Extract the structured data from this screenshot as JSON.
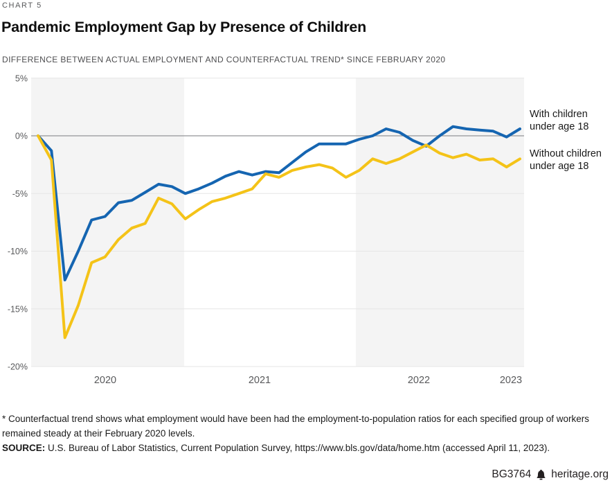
{
  "header": {
    "kicker": "CHART 5",
    "title": "Pandemic Employment Gap by Presence of Children",
    "subtitle": "DIFFERENCE BETWEEN ACTUAL EMPLOYMENT AND COUNTERFACTUAL TREND* SINCE FEBRUARY 2020"
  },
  "chart_data": {
    "type": "line",
    "title": "Pandemic Employment Gap by Presence of Children",
    "xlabel": "",
    "ylabel": "Difference between actual employment and counterfactual trend since February 2020 (%)",
    "ylim": [
      -20,
      5
    ],
    "grid": "horizontal",
    "zero_line": true,
    "legend_position": "right",
    "x_tick_labels": [
      "2020",
      "2021",
      "2022",
      "2023"
    ],
    "y_tick_labels": [
      "5%",
      "0%",
      "-5%",
      "-10%",
      "-15%",
      "-20%"
    ],
    "y_tick_values": [
      5,
      0,
      -5,
      -10,
      -15,
      -20
    ],
    "year_bands": [
      {
        "label": "2020",
        "shaded": true
      },
      {
        "label": "2021",
        "shaded": false
      },
      {
        "label": "2022",
        "shaded": true
      }
    ],
    "categories": [
      "Feb 2020",
      "Mar 2020",
      "Apr 2020",
      "May 2020",
      "Jun 2020",
      "Jul 2020",
      "Aug 2020",
      "Sep 2020",
      "Oct 2020",
      "Nov 2020",
      "Dec 2020",
      "Jan 2021",
      "Feb 2021",
      "Mar 2021",
      "Apr 2021",
      "May 2021",
      "Jun 2021",
      "Jul 2021",
      "Aug 2021",
      "Sep 2021",
      "Oct 2021",
      "Nov 2021",
      "Dec 2021",
      "Jan 2022",
      "Feb 2022",
      "Mar 2022",
      "Apr 2022",
      "May 2022",
      "Jun 2022",
      "Jul 2022",
      "Aug 2022",
      "Sep 2022",
      "Oct 2022",
      "Nov 2022",
      "Dec 2022",
      "Jan 2023",
      "Feb 2023"
    ],
    "series": [
      {
        "name": "With children under age 18",
        "color": "#1565b1",
        "values": [
          0.0,
          -1.3,
          -12.5,
          -10.0,
          -7.3,
          -7.0,
          -5.8,
          -5.6,
          -4.9,
          -4.2,
          -4.4,
          -5.0,
          -4.6,
          -4.1,
          -3.5,
          -3.1,
          -3.4,
          -3.1,
          -3.2,
          -2.3,
          -1.4,
          -0.7,
          -0.7,
          -0.7,
          -0.3,
          0.0,
          0.6,
          0.3,
          -0.4,
          -0.9,
          0.0,
          0.8,
          0.6,
          0.5,
          0.4,
          -0.1,
          0.6
        ]
      },
      {
        "name": "Without children under age 18",
        "color": "#f4c318",
        "values": [
          0.0,
          -2.1,
          -17.5,
          -14.7,
          -11.0,
          -10.5,
          -9.0,
          -8.0,
          -7.6,
          -5.4,
          -5.9,
          -7.2,
          -6.4,
          -5.7,
          -5.4,
          -5.0,
          -4.6,
          -3.3,
          -3.6,
          -3.0,
          -2.7,
          -2.5,
          -2.8,
          -3.6,
          -3.0,
          -2.0,
          -2.4,
          -2.0,
          -1.4,
          -0.8,
          -1.5,
          -1.9,
          -1.6,
          -2.1,
          -2.0,
          -2.7,
          -2.0
        ]
      }
    ]
  },
  "legend": {
    "entries": [
      {
        "lines": [
          "With children",
          "under age 18"
        ]
      },
      {
        "lines": [
          "Without children",
          "under age 18"
        ]
      }
    ]
  },
  "footnotes": {
    "note": "* Counterfactual trend shows what employment would have been had the employment-to-population ratios for each specified group of workers remained steady at their February 2020 levels.",
    "source_label": "SOURCE:",
    "source_text": " U.S. Bureau of Labor Statistics, Current Population Survey, https://www.bls.gov/data/home.htm (accessed April 11, 2023)."
  },
  "footer": {
    "doc_id": "BG3764",
    "site": "heritage.org",
    "bell_icon": "liberty-bell-icon"
  },
  "colors": {
    "band_gray": "#f4f4f4",
    "gridline": "#e6e6e6",
    "zero_line": "#929497",
    "axis_text": "#58595b"
  }
}
